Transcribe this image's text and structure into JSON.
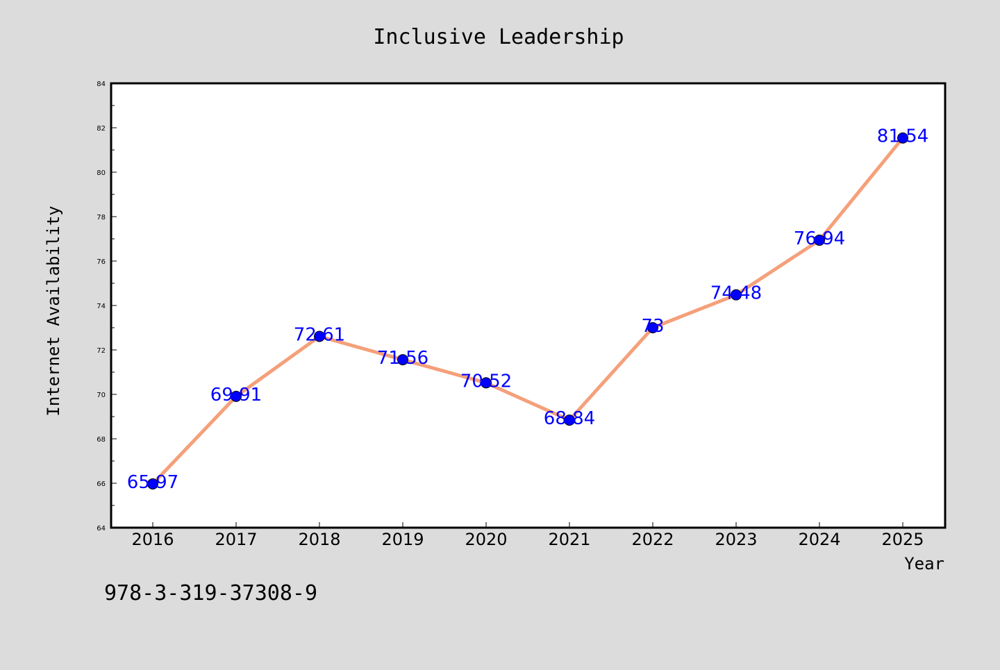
{
  "chart_data": {
    "type": "line",
    "title": "Inclusive Leadership",
    "xlabel": "Year",
    "ylabel": "Internet Availability",
    "categories": [
      "2016",
      "2017",
      "2018",
      "2019",
      "2020",
      "2021",
      "2022",
      "2023",
      "2024",
      "2025"
    ],
    "values": [
      65.97,
      69.91,
      72.61,
      71.56,
      70.52,
      68.84,
      73,
      74.48,
      76.94,
      81.54
    ],
    "data_labels": [
      "65.97",
      "69.91",
      "72.61",
      "71.56",
      "70.52",
      "68.84",
      "73",
      "74.48",
      "76.94",
      "81.54"
    ],
    "ylim": [
      64,
      84
    ],
    "yticks": [
      64,
      66,
      68,
      70,
      72,
      74,
      76,
      78,
      80,
      82,
      84
    ],
    "grid": false,
    "legend": "none",
    "line_color": "#f5a07a",
    "marker_color": "#0000ff",
    "label_color": "#0000ff"
  },
  "footer": {
    "isbn": "978-3-319-37308-9"
  }
}
